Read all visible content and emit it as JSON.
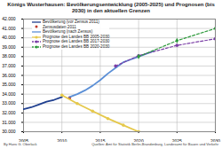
{
  "chart_data": {
    "type": "line",
    "title": "Königs Wusterhausen: Bevölkerungsentwicklung (2005-2025) und Prognosen (bis 2030) in den aktuellen Grenzen",
    "caption": [
      "By Hans G. Oberlack",
      "Quellen: Amt für Statistik Berlin-Brandenburg, Landesamt für Bauen und Verkehr"
    ],
    "xlim": [
      2005,
      2030
    ],
    "xticks": [
      2005,
      2010,
      2015,
      2020,
      2025,
      2030
    ],
    "ylim": [
      30000,
      42000
    ],
    "yticks": [
      {
        "value": 30000,
        "label": "30.000"
      },
      {
        "value": 31000,
        "label": "31.000"
      },
      {
        "value": 32000,
        "label": "32.000"
      },
      {
        "value": 33000,
        "label": "33.000"
      },
      {
        "value": 34000,
        "label": "34.000"
      },
      {
        "value": 35000,
        "label": "35.000"
      },
      {
        "value": 36000,
        "label": "36.000"
      },
      {
        "value": 37000,
        "label": "37.000"
      },
      {
        "value": 38000,
        "label": "38.000"
      },
      {
        "value": 39000,
        "label": "39.000"
      },
      {
        "value": 40000,
        "label": "40.000"
      },
      {
        "value": 41000,
        "label": "41.000"
      },
      {
        "value": 42000,
        "label": "42.000"
      }
    ],
    "grid": true,
    "legend": "top-left",
    "series": [
      {
        "name": "Bevölkerung (vor Zensus 2011)",
        "color": "#1f3f8f",
        "line_style": "solid",
        "x": [
          2005,
          2006,
          2007,
          2008,
          2009,
          2010
        ],
        "values": [
          32400,
          32600,
          32900,
          33200,
          33400,
          33700
        ]
      },
      {
        "name": "Zensusdaten 2011",
        "color": "#c0392b",
        "type": "scatter",
        "marker": "circle",
        "x": [
          2011
        ],
        "values": [
          33600
        ]
      },
      {
        "name": "Bevölkerung (nach Zensus)",
        "color": "#5b8fd6",
        "line_style": "solid",
        "x": [
          2011,
          2012,
          2013,
          2014,
          2015,
          2016,
          2017,
          2018,
          2019,
          2020,
          2021,
          2022
        ],
        "values": [
          33700,
          34000,
          34400,
          34900,
          35500,
          36200,
          36800,
          37400,
          37700,
          38000,
          38300,
          38600
        ]
      },
      {
        "name": "Prognose des Landes BB 2005-2030",
        "color": "#e5c84a",
        "line_style": "solid",
        "marker": "circle",
        "x": [
          2010,
          2012,
          2014,
          2016,
          2018,
          2020
        ],
        "values": [
          33900,
          33000,
          32200,
          31400,
          30700,
          30000
        ]
      },
      {
        "name": "Prognose des Landes BB 2017-2030",
        "color": "#7b3fa6",
        "line_style": "dashed",
        "marker": "circle",
        "x": [
          2017,
          2020,
          2025,
          2030
        ],
        "values": [
          37000,
          38100,
          39200,
          39900
        ]
      },
      {
        "name": "Prognose des Landes BB 2020-2030",
        "color": "#2e9a3c",
        "line_style": "dashed",
        "marker": "diamond",
        "x": [
          2020,
          2025,
          2030
        ],
        "values": [
          38000,
          39700,
          41000
        ]
      }
    ]
  }
}
